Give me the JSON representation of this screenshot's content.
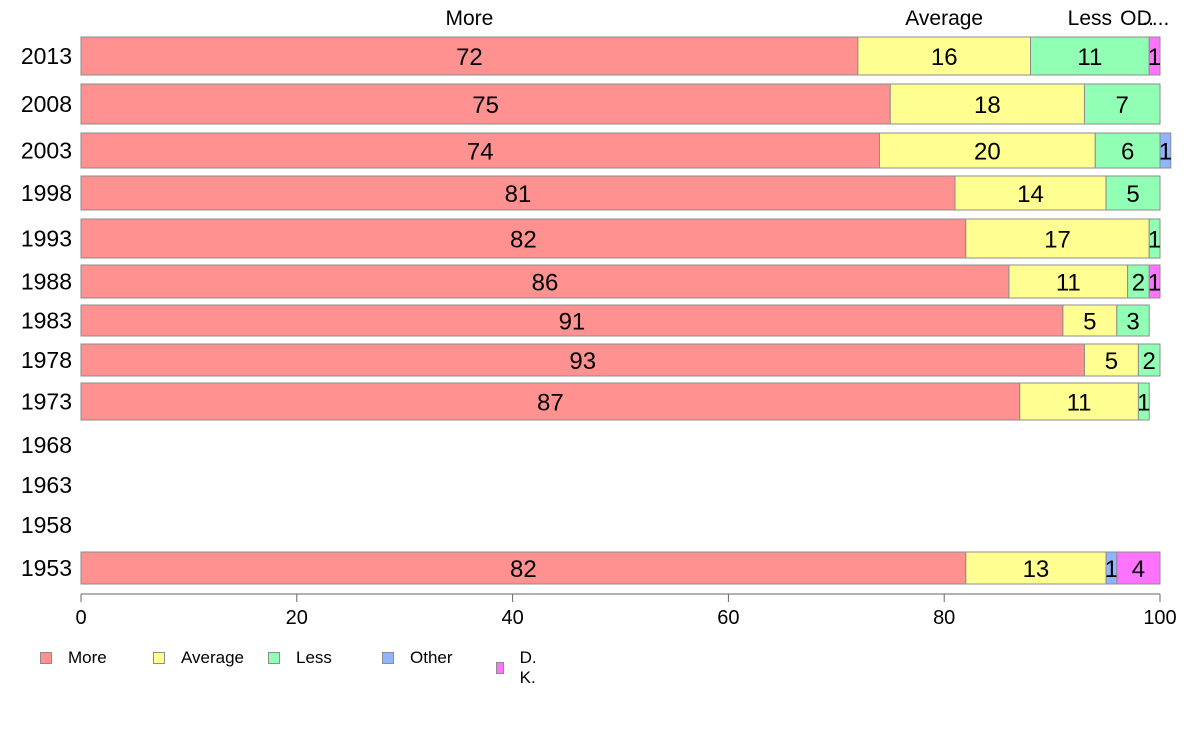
{
  "chart_data": {
    "type": "bar",
    "orientation": "horizontal",
    "stacked": true,
    "top_labels": [
      "More",
      "Average",
      "Less",
      "O...",
      "D..."
    ],
    "categories": [
      "2013",
      "2008",
      "2003",
      "1998",
      "1993",
      "1988",
      "1983",
      "1978",
      "1973",
      "1968",
      "1963",
      "1958",
      "1953"
    ],
    "series": [
      {
        "name": "More",
        "color": "#ff9191",
        "values": [
          72,
          75,
          74,
          81,
          82,
          86,
          91,
          93,
          87,
          null,
          null,
          null,
          82
        ]
      },
      {
        "name": "Average",
        "color": "#ffff91",
        "values": [
          16,
          18,
          20,
          14,
          17,
          11,
          5,
          5,
          11,
          null,
          null,
          null,
          13
        ]
      },
      {
        "name": "Less",
        "color": "#91ffb4",
        "values": [
          11,
          7,
          6,
          5,
          1,
          2,
          3,
          2,
          1,
          null,
          null,
          null,
          null
        ]
      },
      {
        "name": "Other",
        "color": "#91b4ff",
        "values": [
          null,
          null,
          1,
          null,
          null,
          null,
          null,
          null,
          null,
          null,
          null,
          null,
          1
        ]
      },
      {
        "name": "D. K.",
        "color": "#ff73ff",
        "values": [
          1,
          null,
          null,
          null,
          null,
          1,
          null,
          null,
          null,
          null,
          null,
          null,
          4
        ]
      }
    ],
    "xlim": [
      0,
      100
    ],
    "xticks": [
      "0",
      "20",
      "40",
      "60",
      "80",
      "100"
    ],
    "legend_position": "bottom-left",
    "grid": false
  }
}
